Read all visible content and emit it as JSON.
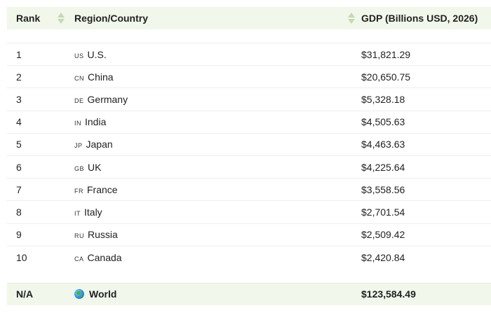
{
  "header": {
    "rank": "Rank",
    "region": "Region/Country",
    "gdp": "GDP (Billions USD, 2026)"
  },
  "rows": [
    {
      "rank": "1",
      "code": "us",
      "country": "U.S.",
      "gdp": "$31,821.29"
    },
    {
      "rank": "2",
      "code": "cn",
      "country": "China",
      "gdp": "$20,650.75"
    },
    {
      "rank": "3",
      "code": "de",
      "country": "Germany",
      "gdp": "$5,328.18"
    },
    {
      "rank": "4",
      "code": "in",
      "country": "India",
      "gdp": "$4,505.63"
    },
    {
      "rank": "5",
      "code": "jp",
      "country": "Japan",
      "gdp": "$4,463.63"
    },
    {
      "rank": "6",
      "code": "gb",
      "country": "UK",
      "gdp": "$4,225.64"
    },
    {
      "rank": "7",
      "code": "fr",
      "country": "France",
      "gdp": "$3,558.56"
    },
    {
      "rank": "8",
      "code": "it",
      "country": "Italy",
      "gdp": "$2,701.54"
    },
    {
      "rank": "9",
      "code": "ru",
      "country": "Russia",
      "gdp": "$2,509.42"
    },
    {
      "rank": "10",
      "code": "ca",
      "country": "Canada",
      "gdp": "$2,420.84"
    }
  ],
  "footer": {
    "rank": "N/A",
    "region": "World",
    "gdp": "$123,584.49",
    "icon": "globe-icon"
  },
  "colors": {
    "header_bg": "#f1f7eb",
    "sort_arrow": "#c5d9b2",
    "row_border": "#eeeeee"
  }
}
